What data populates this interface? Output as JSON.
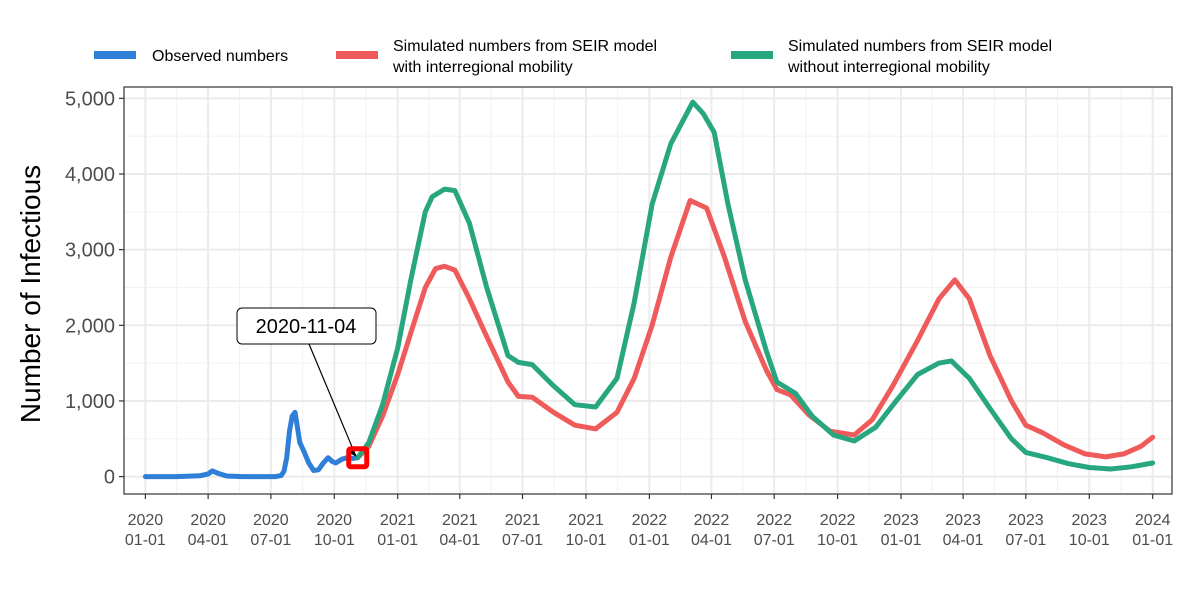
{
  "chart_data": {
    "type": "line",
    "ylabel": "Number of Infectious",
    "xlabel": "",
    "title": "",
    "ylim": [
      -230,
      5150
    ],
    "xlim": [
      "2019-12-01",
      "2024-01-29"
    ],
    "grid": true,
    "legend_position": "top",
    "y_ticks": [
      {
        "value": 0,
        "label": "0"
      },
      {
        "value": 1000,
        "label": "1,000"
      },
      {
        "value": 2000,
        "label": "2,000"
      },
      {
        "value": 3000,
        "label": "3,000"
      },
      {
        "value": 4000,
        "label": "4,000"
      },
      {
        "value": 5000,
        "label": "5,000"
      }
    ],
    "x_ticks": [
      {
        "date": "2020-01-01",
        "line1": "2020",
        "line2": "01-01"
      },
      {
        "date": "2020-04-01",
        "line1": "2020",
        "line2": "04-01"
      },
      {
        "date": "2020-07-01",
        "line1": "2020",
        "line2": "07-01"
      },
      {
        "date": "2020-10-01",
        "line1": "2020",
        "line2": "10-01"
      },
      {
        "date": "2021-01-01",
        "line1": "2021",
        "line2": "01-01"
      },
      {
        "date": "2021-04-01",
        "line1": "2021",
        "line2": "04-01"
      },
      {
        "date": "2021-07-01",
        "line1": "2021",
        "line2": "07-01"
      },
      {
        "date": "2021-10-01",
        "line1": "2021",
        "line2": "10-01"
      },
      {
        "date": "2022-01-01",
        "line1": "2022",
        "line2": "01-01"
      },
      {
        "date": "2022-04-01",
        "line1": "2022",
        "line2": "04-01"
      },
      {
        "date": "2022-07-01",
        "line1": "2022",
        "line2": "07-01"
      },
      {
        "date": "2022-10-01",
        "line1": "2022",
        "line2": "10-01"
      },
      {
        "date": "2023-01-01",
        "line1": "2023",
        "line2": "01-01"
      },
      {
        "date": "2023-04-01",
        "line1": "2023",
        "line2": "04-01"
      },
      {
        "date": "2023-07-01",
        "line1": "2023",
        "line2": "07-01"
      },
      {
        "date": "2023-10-01",
        "line1": "2023",
        "line2": "10-01"
      },
      {
        "date": "2024-01-01",
        "line1": "2024",
        "line2": "01-01"
      }
    ],
    "series": [
      {
        "name": "Observed numbers",
        "color": "#2f7ed8",
        "points": [
          [
            "2020-01-01",
            0
          ],
          [
            "2020-02-15",
            0
          ],
          [
            "2020-03-20",
            10
          ],
          [
            "2020-04-01",
            35
          ],
          [
            "2020-04-07",
            75
          ],
          [
            "2020-04-15",
            45
          ],
          [
            "2020-04-28",
            8
          ],
          [
            "2020-05-20",
            0
          ],
          [
            "2020-06-20",
            0
          ],
          [
            "2020-07-08",
            0
          ],
          [
            "2020-07-16",
            15
          ],
          [
            "2020-07-20",
            70
          ],
          [
            "2020-07-24",
            250
          ],
          [
            "2020-07-28",
            600
          ],
          [
            "2020-08-01",
            800
          ],
          [
            "2020-08-05",
            850
          ],
          [
            "2020-08-08",
            680
          ],
          [
            "2020-08-12",
            450
          ],
          [
            "2020-08-18",
            330
          ],
          [
            "2020-08-25",
            180
          ],
          [
            "2020-09-01",
            80
          ],
          [
            "2020-09-08",
            90
          ],
          [
            "2020-09-15",
            180
          ],
          [
            "2020-09-22",
            250
          ],
          [
            "2020-09-28",
            200
          ],
          [
            "2020-10-03",
            180
          ],
          [
            "2020-10-12",
            230
          ],
          [
            "2020-10-20",
            250
          ],
          [
            "2020-10-28",
            240
          ],
          [
            "2020-11-04",
            250
          ]
        ]
      },
      {
        "name": "Simulated numbers from SEIR model with interregional mobility",
        "color": "#ef5b5b",
        "points": [
          [
            "2020-11-04",
            250
          ],
          [
            "2020-11-20",
            400
          ],
          [
            "2020-12-10",
            800
          ],
          [
            "2021-01-01",
            1350
          ],
          [
            "2021-01-20",
            1900
          ],
          [
            "2021-02-10",
            2500
          ],
          [
            "2021-02-25",
            2750
          ],
          [
            "2021-03-10",
            2780
          ],
          [
            "2021-03-25",
            2730
          ],
          [
            "2021-04-15",
            2350
          ],
          [
            "2021-05-10",
            1850
          ],
          [
            "2021-06-10",
            1250
          ],
          [
            "2021-06-25",
            1060
          ],
          [
            "2021-07-15",
            1050
          ],
          [
            "2021-08-15",
            850
          ],
          [
            "2021-09-15",
            680
          ],
          [
            "2021-10-15",
            630
          ],
          [
            "2021-11-15",
            850
          ],
          [
            "2021-12-10",
            1300
          ],
          [
            "2022-01-05",
            2000
          ],
          [
            "2022-02-01",
            2900
          ],
          [
            "2022-03-01",
            3650
          ],
          [
            "2022-03-25",
            3550
          ],
          [
            "2022-04-20",
            2900
          ],
          [
            "2022-05-20",
            2050
          ],
          [
            "2022-06-20",
            1400
          ],
          [
            "2022-07-05",
            1150
          ],
          [
            "2022-07-25",
            1080
          ],
          [
            "2022-08-20",
            820
          ],
          [
            "2022-09-20",
            600
          ],
          [
            "2022-10-25",
            550
          ],
          [
            "2022-11-20",
            750
          ],
          [
            "2022-12-20",
            1200
          ],
          [
            "2023-01-25",
            1800
          ],
          [
            "2023-02-25",
            2350
          ],
          [
            "2023-03-20",
            2600
          ],
          [
            "2023-04-10",
            2350
          ],
          [
            "2023-05-10",
            1600
          ],
          [
            "2023-06-10",
            1000
          ],
          [
            "2023-07-01",
            680
          ],
          [
            "2023-07-25",
            580
          ],
          [
            "2023-08-25",
            420
          ],
          [
            "2023-09-25",
            300
          ],
          [
            "2023-10-25",
            260
          ],
          [
            "2023-11-20",
            300
          ],
          [
            "2023-12-15",
            400
          ],
          [
            "2024-01-01",
            520
          ]
        ]
      },
      {
        "name": "Simulated numbers from SEIR model without interregional mobility",
        "color": "#27a67f",
        "points": [
          [
            "2020-11-04",
            250
          ],
          [
            "2020-11-20",
            450
          ],
          [
            "2020-12-10",
            950
          ],
          [
            "2021-01-01",
            1700
          ],
          [
            "2021-01-20",
            2600
          ],
          [
            "2021-02-10",
            3500
          ],
          [
            "2021-02-20",
            3700
          ],
          [
            "2021-03-10",
            3800
          ],
          [
            "2021-03-25",
            3780
          ],
          [
            "2021-04-15",
            3350
          ],
          [
            "2021-05-10",
            2500
          ],
          [
            "2021-06-10",
            1600
          ],
          [
            "2021-06-25",
            1510
          ],
          [
            "2021-07-15",
            1480
          ],
          [
            "2021-08-15",
            1200
          ],
          [
            "2021-09-15",
            950
          ],
          [
            "2021-10-15",
            920
          ],
          [
            "2021-11-15",
            1300
          ],
          [
            "2021-12-10",
            2300
          ],
          [
            "2022-01-05",
            3600
          ],
          [
            "2022-02-01",
            4400
          ],
          [
            "2022-03-05",
            4950
          ],
          [
            "2022-03-20",
            4800
          ],
          [
            "2022-04-05",
            4550
          ],
          [
            "2022-04-25",
            3600
          ],
          [
            "2022-05-20",
            2600
          ],
          [
            "2022-06-20",
            1650
          ],
          [
            "2022-07-05",
            1250
          ],
          [
            "2022-08-01",
            1100
          ],
          [
            "2022-08-25",
            800
          ],
          [
            "2022-09-25",
            550
          ],
          [
            "2022-10-25",
            470
          ],
          [
            "2022-11-25",
            650
          ],
          [
            "2022-12-25",
            1000
          ],
          [
            "2023-01-25",
            1350
          ],
          [
            "2023-02-25",
            1500
          ],
          [
            "2023-03-15",
            1530
          ],
          [
            "2023-04-10",
            1300
          ],
          [
            "2023-05-10",
            900
          ],
          [
            "2023-06-10",
            500
          ],
          [
            "2023-07-01",
            320
          ],
          [
            "2023-08-01",
            250
          ],
          [
            "2023-09-01",
            170
          ],
          [
            "2023-10-01",
            120
          ],
          [
            "2023-11-01",
            100
          ],
          [
            "2023-12-01",
            130
          ],
          [
            "2024-01-01",
            180
          ]
        ]
      }
    ],
    "annotation": {
      "label": "2020-11-04",
      "date": "2020-11-04",
      "value": 250,
      "marker_color": "#ff0000"
    }
  }
}
